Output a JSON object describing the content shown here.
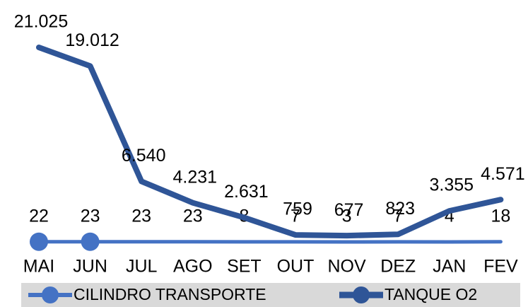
{
  "chart_data": {
    "type": "line",
    "categories": [
      "MAI",
      "JUN",
      "JUL",
      "AGO",
      "SET",
      "OUT",
      "NOV",
      "DEZ",
      "JAN",
      "FEV"
    ],
    "series": [
      {
        "name": "CILINDRO TRANSPORTE",
        "color": "#4472c4",
        "values": [
          22,
          23,
          23,
          23,
          8,
          7,
          3,
          7,
          4,
          18
        ]
      },
      {
        "name": "TANQUE O2",
        "color": "#2f5597",
        "values": [
          21025,
          19012,
          6540,
          4231,
          2631,
          759,
          677,
          823,
          3355,
          4571
        ],
        "value_labels": [
          "21.025",
          "19.012",
          "6.540",
          "4.231",
          "2.631",
          "759",
          "677",
          "823",
          "3.355",
          "4.571"
        ]
      }
    ],
    "legend": "bottom"
  }
}
